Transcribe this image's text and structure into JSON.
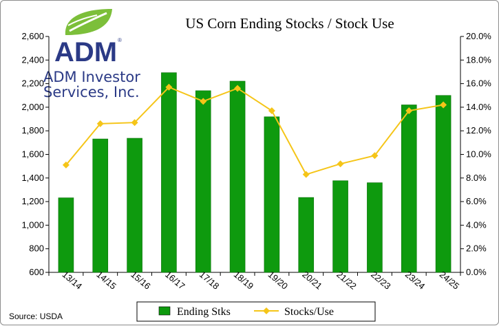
{
  "chart_data": {
    "type": "bar+line",
    "title": "US Corn Ending Stocks / Stock Use",
    "categories": [
      "13/14",
      "14/15",
      "15/16",
      "16/17",
      "17/18",
      "18/19",
      "19/20",
      "20/21",
      "21/22",
      "22/23",
      "23/24",
      "24/25"
    ],
    "series": [
      {
        "name": "Ending Stks",
        "type": "bar",
        "axis": "left",
        "values": [
          1232,
          1731,
          1737,
          2293,
          2140,
          2221,
          1919,
          1235,
          1377,
          1360,
          2020,
          2100
        ],
        "color": "#0e9a0e"
      },
      {
        "name": "Stocks/Use",
        "type": "line",
        "axis": "right",
        "values": [
          9.1,
          12.6,
          12.7,
          15.7,
          14.5,
          15.6,
          13.7,
          8.3,
          9.2,
          9.9,
          13.7,
          14.2
        ],
        "color": "#f5c518"
      }
    ],
    "y_left": {
      "min": 600,
      "max": 2600,
      "ticks": [
        "600",
        "800",
        "1,000",
        "1,200",
        "1,400",
        "1,600",
        "1,800",
        "2,000",
        "2,200",
        "2,400",
        "2,600"
      ]
    },
    "y_right": {
      "min": 0,
      "max": 20,
      "ticks": [
        "0.0%",
        "2.0%",
        "4.0%",
        "6.0%",
        "8.0%",
        "10.0%",
        "12.0%",
        "14.0%",
        "16.0%",
        "18.0%",
        "20.0%"
      ]
    },
    "legend_position": "bottom",
    "grid": false
  },
  "logo": {
    "name": "ADM",
    "line1": "ADM Investor",
    "line2": "Services, Inc.",
    "registered": "®"
  },
  "source": "Source: USDA"
}
